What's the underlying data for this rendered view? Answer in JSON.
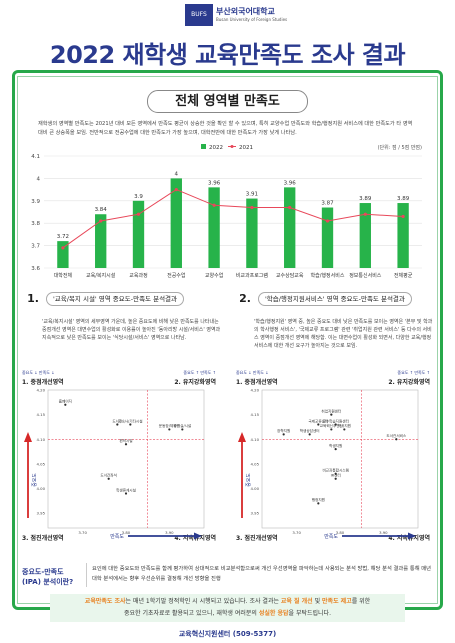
{
  "header": {
    "logo_mark": "BUFS",
    "university": "부산외국어대학교",
    "university_en": "Busan University of Foreign Studies",
    "title": "2022 재학생 교육만족도 조사 결과"
  },
  "section": {
    "title": "전체 영역별 만족도",
    "intro": "재학생의 영역별 만족도는 2021년 대비 모든 영역에서 만족도 평균이 상승한 것을 확인 할 수 있으며, 특히 교양수업 만족도와 학습/행정지원 서비스에 대한 만족도가 타 영역 대비 큰 상승폭을 보임. 전반적으로 전공수업에 대한 만족도가 가장 높으며, 대학전반에 대한 만족도가 가장 낮게 나타남."
  },
  "colors": {
    "bar": "#27b34a",
    "line": "#e8485a",
    "accent": "#2a3a8e",
    "frame": "#27a84a"
  },
  "chart_data": [
    {
      "type": "bar",
      "unit_note": "(단위: 점 / 5점 만점)",
      "categories": [
        "대학전체",
        "교육/복지시설",
        "교육과정",
        "전공수업",
        "교양수업",
        "비교과프로그램",
        "교수상담교육",
        "학습/행정서비스",
        "정보통신서비스",
        "전체평균"
      ],
      "series": [
        {
          "name": "2022",
          "type": "bar",
          "values": [
            3.72,
            3.84,
            3.9,
            4.0,
            3.96,
            3.91,
            3.96,
            3.87,
            3.89,
            3.89
          ]
        },
        {
          "name": "2021",
          "type": "line",
          "values": [
            3.69,
            3.81,
            3.84,
            3.95,
            3.88,
            3.87,
            3.87,
            3.81,
            3.84,
            3.83
          ]
        }
      ],
      "ylim": [
        3.6,
        4.1
      ],
      "yticks": [
        "3.6",
        "3.7",
        "3.8",
        "3.9",
        "4",
        "4.1"
      ],
      "data_labels": [
        "3.72",
        "3.84",
        "3.9",
        "4",
        "3.96",
        "3.91",
        "3.96",
        "3.87",
        "3.89",
        "3.89"
      ],
      "legend": "top-center",
      "grid": true
    },
    {
      "type": "scatter",
      "quadrant_labels": [
        "1. 중점개선영역",
        "2. 유지강화영역",
        "3. 점진개선영역",
        "4. 지속유지영역"
      ],
      "importance_low": "중요도 ↓ 만족도 ↓",
      "importance_high": "중요도 ↑ 만족도 ↑",
      "x_axis": "만족도",
      "y_axis": "중요도",
      "xticks": [
        "3.70",
        "3.80",
        "3.90"
      ],
      "yticks": [
        "4.20",
        "4.15",
        "4.10",
        "4.05",
        "4.00",
        "3.95"
      ],
      "points": [
        {
          "label": "홈페이지",
          "x": 3.66,
          "y": 4.17
        },
        {
          "label": "도서관",
          "x": 3.78,
          "y": 4.13
        },
        {
          "label": "기숙사/기타시설",
          "x": 3.81,
          "y": 4.13
        },
        {
          "label": "운동장/체육관",
          "x": 3.9,
          "y": 4.12
        },
        {
          "label": "강의실/시설",
          "x": 3.93,
          "y": 4.12
        },
        {
          "label": "편의시설",
          "x": 3.8,
          "y": 4.09
        },
        {
          "label": "도서관좌석",
          "x": 3.76,
          "y": 4.02
        },
        {
          "label": "학생휴게시설",
          "x": 3.8,
          "y": 3.99
        }
      ],
      "x_mid": 3.85,
      "y_mid": 4.1
    },
    {
      "type": "scatter",
      "quadrant_labels": [
        "1. 중점개선영역",
        "2. 유지강화영역",
        "3. 점진개선영역",
        "4. 지속유지영역"
      ],
      "importance_low": "중요도 ↓ 만족도 ↓",
      "importance_high": "중요도 ↑ 만족도 ↑",
      "x_axis": "만족도",
      "y_axis": "중요도",
      "xticks": [
        "3.70",
        "3.80",
        "3.90"
      ],
      "yticks": [
        "4.20",
        "4.15",
        "4.10",
        "4.05",
        "4.00",
        "3.95",
        "3.90"
      ],
      "points": [
        {
          "label": "취업지원센터",
          "x": 3.78,
          "y": 4.15
        },
        {
          "label": "국제교류센터",
          "x": 3.75,
          "y": 4.13
        },
        {
          "label": "교수학습지원센터",
          "x": 3.79,
          "y": 4.13
        },
        {
          "label": "학사지원",
          "x": 3.81,
          "y": 4.12
        },
        {
          "label": "교육혁신추진단",
          "x": 3.78,
          "y": 4.12
        },
        {
          "label": "장학지원",
          "x": 3.67,
          "y": 4.11
        },
        {
          "label": "학생상담센터",
          "x": 3.73,
          "y": 4.11
        },
        {
          "label": "도서관서비스",
          "x": 3.93,
          "y": 4.1
        },
        {
          "label": "학생지원",
          "x": 3.79,
          "y": 4.08
        },
        {
          "label": "비교과통합시스템",
          "x": 3.79,
          "y": 4.03
        },
        {
          "label": "IR센터",
          "x": 3.79,
          "y": 4.02
        },
        {
          "label": "행정지원",
          "x": 3.75,
          "y": 3.97
        }
      ],
      "x_mid": 3.85,
      "y_mid": 4.1
    }
  ],
  "sub1": {
    "num": "1.",
    "title": "'교육/복지 시설' 영역 중요도-만족도 분석결과",
    "desc": "'교육/복지시설' 영역의 세부영역 가운데, 높은 중요도에 비해 낮은 만족도를 나타내는 중점개선 영역은 대면수업의 활성화로 이용률이 높아진 '동아리방 시설/서비스' 영역과 지속적으로 낮은 만족도를 보이는 '식당시설/서비스' 영역으로 나타남."
  },
  "sub2": {
    "num": "2.",
    "title": "'학습/행정지원서비스' 영역 중요도-만족도 분석결과",
    "desc": "'학습/행정지원' 영역 중, 높은 중요도 대비 낮은 만족도를 보이는 영역은 '본부 및 학과의 학사행정 서비스', '국제교류 프로그램' 관련 '취업지원 관련 서비스' 등 다수의 서비스 영역이 중점개선 영역에 해당함. 이는 대면수업이 활성화 되면서, 다양한 교육/행정 서비스에 대한 개선 요구가 높아지는 것으로 보임."
  },
  "ipa": {
    "label": "중요도-만족도(IPA) 분석이란?",
    "text": "요인에 대한 중요도와 만족도를 함께 평가하여 상대적으로 비교분석함으로써 개선 우선영역을 파악하는데 사용되는 분석 방법, 해당 분석 결과를 통해 매년 대학 분석에서는 향후 우선순위를 결정해 개선 방향을 진행"
  },
  "footer": {
    "line1_pre": "교육만족도 조사",
    "line1_mid": "는 매년 1학기말 정적학인 시 시행되고 있습니다.  조사 결과는 ",
    "line1_hl1": "교육 질 개선",
    "line1_and": " 및 ",
    "line1_hl2": "만족도 제고",
    "line1_post": "를 위한",
    "line2_pre": "중요한 기초자료로 활용되고 있으니,  재학생 여러분의 ",
    "line2_hl": "성실한 응답",
    "line2_post": "을 부탁드립니다.",
    "contact": "교육혁신지원센터 (509-5377)"
  }
}
